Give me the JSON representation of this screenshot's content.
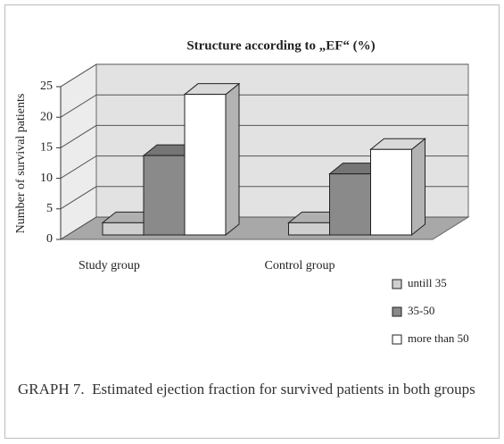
{
  "chart_data": {
    "type": "bar3d",
    "title": "Structure according to „EF“ (%)",
    "y_label": "Number of survival patients",
    "categories": [
      "Study group",
      "Control group"
    ],
    "series": [
      {
        "name": "untill 35",
        "color": "#cfcfcf",
        "values": [
          2,
          2
        ]
      },
      {
        "name": "35-50",
        "color": "#8a8a8a",
        "values": [
          13,
          10
        ]
      },
      {
        "name": "more than 50",
        "color": "#ffffff",
        "values": [
          23,
          14
        ]
      }
    ],
    "ylim": [
      0,
      25
    ],
    "yticks": [
      0,
      5,
      10,
      15,
      20,
      25
    ],
    "grid": true,
    "legend": "lower right"
  },
  "caption": "GRAPH 7.  Estimated ejection fraction for survived patients in both groups"
}
